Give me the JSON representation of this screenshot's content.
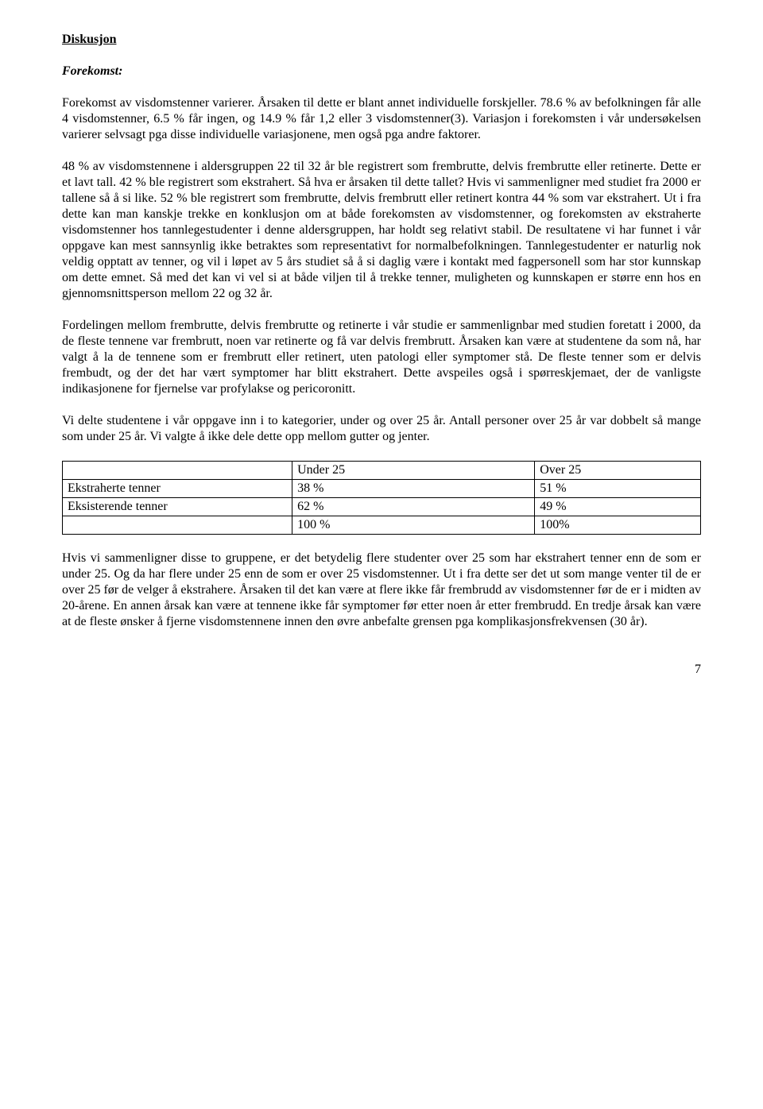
{
  "heading": "Diskusjon",
  "subheading": "Forekomst:",
  "para1": "Forekomst av visdomstenner varierer. Årsaken til dette er blant annet individuelle forskjeller. 78.6 % av befolkningen får alle 4 visdomstenner, 6.5 % får ingen, og 14.9 % får 1,2 eller 3 visdomstenner(3). Variasjon i forekomsten i vår undersøkelsen varierer selvsagt pga disse individuelle variasjonene, men også pga andre faktorer.",
  "para2": "48 % av visdomstennene i aldersgruppen 22 til 32 år ble registrert som frembrutte, delvis frembrutte eller retinerte. Dette er et lavt tall. 42 % ble registrert som ekstrahert. Så hva er årsaken til dette tallet? Hvis vi sammenligner med studiet fra 2000 er tallene så å si like. 52 % ble registrert som frembrutte, delvis frembrutt eller retinert kontra 44 % som var ekstrahert. Ut i fra dette kan man kanskje trekke en konklusjon om at både forekomsten av visdomstenner, og forekomsten av ekstraherte visdomstenner hos tannlegestudenter i denne aldersgruppen, har holdt seg relativt stabil. De resultatene vi har funnet i vår oppgave kan mest sannsynlig ikke betraktes som representativt for normalbefolkningen. Tannlegestudenter er naturlig nok veldig opptatt av tenner, og vil i løpet av 5 års studiet så å si daglig være i kontakt med fagpersonell som har stor kunnskap om dette emnet. Så med det kan vi vel si at både viljen til å trekke tenner, muligheten og kunnskapen er større enn hos en gjennomsnittsperson mellom 22 og 32 år.",
  "para3": "Fordelingen mellom frembrutte, delvis frembrutte og retinerte i vår studie er sammenlignbar med studien foretatt i 2000, da de fleste tennene var frembrutt, noen var retinerte og få var delvis frembrutt. Årsaken kan være at studentene da som nå, har valgt å la de tennene som er frembrutt eller retinert, uten patologi eller symptomer stå. De fleste tenner som er delvis frembudt, og der det har vært symptomer har blitt ekstrahert. Dette avspeiles også i spørreskjemaet, der de vanligste indikasjonene for fjernelse var profylakse og pericoronitt.",
  "para4": "Vi delte studentene i vår oppgave inn i to kategorier, under og over 25 år. Antall personer over 25 år var dobbelt så mange som under 25 år. Vi valgte å ikke dele dette opp mellom gutter og jenter.",
  "table": {
    "columns": [
      "",
      "Under 25",
      "Over 25"
    ],
    "rows": [
      [
        "Ekstraherte tenner",
        "38 %",
        "51 %"
      ],
      [
        "Eksisterende tenner",
        "62 %",
        "49 %"
      ],
      [
        "",
        "100 %",
        "100%"
      ]
    ]
  },
  "para5": "Hvis vi sammenligner disse to gruppene, er det betydelig flere studenter over 25 som har ekstrahert tenner enn de som er under 25. Og da har flere under 25 enn de som er over 25 visdomstenner. Ut i fra dette ser det ut som mange venter til de er over 25 før de velger å ekstrahere. Årsaken til det kan være at flere ikke får frembrudd av visdomstenner før de er i midten av 20-årene. En annen årsak kan være at tennene ikke får symptomer før etter noen år etter frembrudd. En tredje årsak kan være at de fleste ønsker å fjerne visdomstennene innen den øvre anbefalte grensen pga komplikasjonsfrekvensen (30 år).",
  "pageNumber": "7"
}
